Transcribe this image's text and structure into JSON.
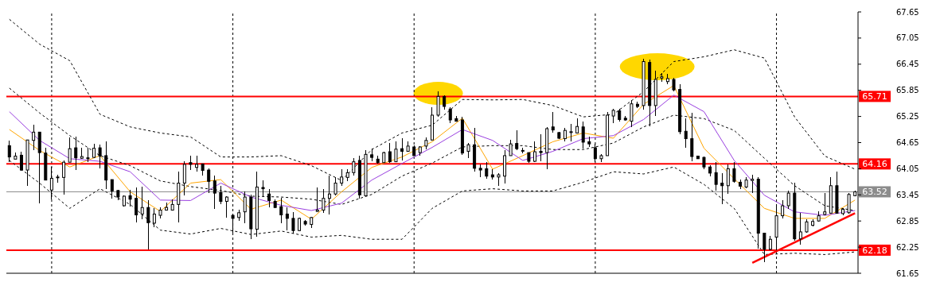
{
  "chart_data": {
    "type": "candlestick",
    "categories": [
      null,
      null,
      null,
      null,
      null,
      null,
      null,
      null,
      null,
      null,
      null,
      null,
      null,
      null,
      null,
      null,
      null,
      null,
      null,
      null,
      null,
      null,
      null,
      null,
      null,
      null,
      null,
      null,
      null,
      null,
      null,
      null,
      null,
      null,
      null,
      null,
      null,
      null,
      null,
      null,
      null,
      null,
      null,
      null,
      null,
      null,
      null,
      null,
      null,
      null,
      null,
      null,
      null,
      null,
      null,
      null,
      null,
      null,
      null,
      null,
      null,
      null,
      null,
      null,
      null,
      null,
      null,
      null,
      null,
      null,
      null,
      null,
      null,
      null,
      null,
      null,
      null,
      null,
      null,
      null,
      null,
      null,
      null,
      null,
      null,
      null,
      null,
      null,
      null,
      null,
      null,
      null,
      null,
      null,
      null,
      null,
      null,
      null,
      null,
      null,
      null,
      null,
      null,
      null,
      null,
      null,
      null,
      null,
      null,
      null,
      null,
      null,
      null,
      null,
      null,
      null,
      null,
      null,
      null,
      null,
      null,
      null,
      null,
      null,
      null,
      null,
      null,
      null,
      null,
      null,
      null,
      null,
      null,
      null,
      null,
      null,
      null,
      null,
      null,
      null,
      null
    ],
    "ohlc": [
      [
        64.58,
        64.7,
        64.21,
        64.32
      ],
      [
        64.27,
        64.42,
        64.27,
        64.34
      ],
      [
        64.36,
        64.44,
        64.01,
        64.02
      ],
      [
        64.02,
        64.72,
        63.66,
        64.71
      ],
      [
        64.7,
        65.06,
        64.47,
        64.89
      ],
      [
        64.89,
        64.9,
        63.25,
        64.42
      ],
      [
        64.41,
        64.53,
        63.78,
        63.79
      ],
      [
        63.56,
        64.09,
        63.35,
        63.83
      ],
      [
        63.86,
        63.92,
        63.72,
        63.86
      ],
      [
        63.85,
        64.24,
        63.45,
        64.2
      ],
      [
        64.2,
        64.77,
        64.2,
        64.51
      ],
      [
        64.53,
        64.78,
        64.02,
        64.3
      ],
      [
        64.29,
        64.53,
        64.27,
        64.33
      ],
      [
        64.3,
        64.53,
        64.21,
        64.29
      ],
      [
        64.31,
        64.63,
        64.29,
        64.52
      ],
      [
        64.53,
        64.61,
        64.06,
        64.34
      ],
      [
        64.35,
        64.68,
        63.58,
        63.79
      ],
      [
        63.8,
        63.8,
        63.37,
        63.54
      ],
      [
        63.55,
        63.56,
        63.32,
        63.4
      ],
      [
        63.2,
        63.43,
        63.19,
        63.42
      ],
      [
        63.43,
        63.56,
        63.19,
        63.35
      ],
      [
        63.37,
        63.62,
        62.81,
        62.99
      ],
      [
        63.01,
        63.63,
        62.89,
        63.16
      ],
      [
        63.16,
        63.32,
        62.2,
        62.81
      ],
      [
        62.8,
        63.14,
        62.71,
        63.01
      ],
      [
        62.98,
        63.17,
        62.91,
        63.1
      ],
      [
        63.1,
        63.28,
        63.09,
        63.16
      ],
      [
        63.1,
        63.35,
        63.09,
        63.23
      ],
      [
        63.23,
        63.99,
        62.81,
        63.72
      ],
      [
        63.72,
        64.22,
        63.43,
        64.15
      ],
      [
        64.19,
        64.35,
        64.02,
        64.15
      ],
      [
        64.08,
        64.35,
        63.99,
        64.15
      ],
      [
        64.16,
        64.17,
        63.89,
        64.01
      ],
      [
        64.02,
        64.06,
        63.49,
        63.76
      ],
      [
        63.77,
        63.89,
        63.12,
        63.49
      ],
      [
        63.5,
        63.66,
        63.23,
        63.3
      ],
      [
        63.3,
        63.41,
        62.93,
        63.4
      ],
      [
        62.98,
        62.99,
        62.58,
        62.91
      ],
      [
        62.93,
        63.1,
        62.86,
        63.04
      ],
      [
        63.06,
        63.52,
        62.8,
        63.4
      ],
      [
        63.4,
        63.46,
        62.43,
        62.67
      ],
      [
        62.66,
        63.98,
        62.48,
        63.63
      ],
      [
        63.62,
        63.78,
        63.42,
        63.59
      ],
      [
        63.47,
        63.59,
        63.16,
        63.32
      ],
      [
        63.3,
        63.34,
        63.15,
        63.16
      ],
      [
        63.18,
        63.39,
        62.8,
        62.99
      ],
      [
        63.01,
        63.17,
        62.63,
        62.91
      ],
      [
        62.91,
        63.06,
        62.57,
        62.63
      ],
      [
        62.63,
        62.93,
        62.62,
        62.91
      ],
      [
        62.84,
        62.87,
        62.75,
        62.78
      ],
      [
        62.77,
        62.95,
        62.69,
        62.93
      ],
      [
        63.07,
        63.62,
        63.06,
        63.1
      ],
      [
        63.1,
        63.58,
        63.03,
        63.37
      ],
      [
        63.37,
        63.89,
        63.0,
        63.47
      ],
      [
        63.47,
        63.86,
        63.43,
        63.72
      ],
      [
        63.72,
        64.04,
        63.66,
        63.86
      ],
      [
        63.85,
        64.04,
        63.76,
        63.96
      ],
      [
        63.96,
        64.29,
        63.9,
        64.21
      ],
      [
        64.24,
        64.35,
        63.37,
        63.45
      ],
      [
        63.43,
        64.48,
        63.42,
        64.38
      ],
      [
        64.37,
        64.52,
        64.22,
        64.31
      ],
      [
        64.27,
        64.34,
        64.16,
        64.19
      ],
      [
        64.19,
        64.44,
        64.18,
        64.42
      ],
      [
        64.44,
        64.64,
        64.18,
        64.21
      ],
      [
        64.21,
        64.68,
        64.2,
        64.5
      ],
      [
        64.51,
        64.75,
        64.24,
        64.45
      ],
      [
        64.45,
        64.67,
        64.44,
        64.57
      ],
      [
        64.55,
        64.58,
        64.34,
        64.35
      ],
      [
        64.42,
        64.56,
        64.35,
        64.55
      ],
      [
        64.57,
        64.77,
        64.49,
        64.7
      ],
      [
        64.71,
        65.47,
        64.7,
        65.28
      ],
      [
        65.28,
        65.83,
        65.24,
        65.71
      ],
      [
        65.71,
        65.73,
        65.4,
        65.48
      ],
      [
        65.42,
        65.47,
        65.09,
        65.17
      ],
      [
        65.2,
        65.27,
        65.13,
        65.14
      ],
      [
        65.17,
        65.24,
        64.37,
        64.41
      ],
      [
        64.45,
        64.65,
        64.29,
        64.6
      ],
      [
        64.6,
        64.98,
        63.99,
        64.06
      ],
      [
        64.06,
        64.15,
        63.86,
        64.02
      ],
      [
        64.05,
        64.2,
        63.82,
        63.88
      ],
      [
        63.91,
        64.04,
        63.81,
        63.86
      ],
      [
        63.86,
        63.94,
        63.66,
        63.91
      ],
      [
        63.88,
        64.47,
        63.71,
        64.35
      ],
      [
        64.35,
        64.71,
        64.34,
        64.62
      ],
      [
        64.63,
        64.93,
        64.48,
        64.51
      ],
      [
        64.47,
        64.53,
        64.41,
        64.47
      ],
      [
        64.42,
        64.43,
        64.19,
        64.22
      ],
      [
        64.22,
        64.67,
        64.21,
        64.44
      ],
      [
        64.45,
        64.84,
        64.22,
        64.42
      ],
      [
        64.42,
        65.01,
        64.04,
        64.97
      ],
      [
        65.01,
        65.36,
        64.87,
        64.94
      ],
      [
        64.88,
        64.9,
        64.73,
        64.75
      ],
      [
        64.74,
        64.98,
        64.67,
        64.93
      ],
      [
        64.88,
        65.07,
        64.67,
        64.9
      ],
      [
        64.87,
        65.2,
        64.86,
        65.02
      ],
      [
        65.01,
        65.14,
        64.52,
        64.66
      ],
      [
        64.67,
        64.78,
        64.55,
        64.62
      ],
      [
        64.53,
        64.62,
        64.21,
        64.28
      ],
      [
        64.28,
        64.39,
        64.21,
        64.35
      ],
      [
        64.35,
        65.36,
        64.34,
        65.28
      ],
      [
        65.26,
        65.43,
        65.1,
        65.39
      ],
      [
        65.38,
        65.43,
        65.13,
        65.18
      ],
      [
        65.21,
        65.27,
        65.15,
        65.17
      ],
      [
        65.14,
        65.63,
        65.01,
        65.54
      ],
      [
        65.53,
        65.59,
        65.44,
        65.48
      ],
      [
        65.5,
        66.57,
        65.4,
        66.51
      ],
      [
        66.49,
        66.55,
        65.02,
        65.5
      ],
      [
        65.5,
        66.3,
        65.27,
        66.1
      ],
      [
        66.13,
        66.25,
        66.05,
        66.16
      ],
      [
        66.05,
        66.23,
        65.99,
        66.12
      ],
      [
        66.1,
        66.14,
        65.83,
        65.86
      ],
      [
        65.87,
        65.99,
        64.84,
        64.9
      ],
      [
        64.91,
        65.21,
        64.53,
        64.74
      ],
      [
        64.74,
        65.33,
        64.22,
        64.33
      ],
      [
        64.34,
        64.35,
        64.27,
        64.28
      ],
      [
        64.31,
        64.33,
        64.04,
        64.09
      ],
      [
        64.09,
        64.13,
        63.88,
        63.95
      ],
      [
        63.96,
        64.21,
        63.54,
        63.69
      ],
      [
        63.72,
        63.95,
        63.23,
        63.66
      ],
      [
        63.66,
        64.15,
        63.47,
        64.05
      ],
      [
        64.05,
        64.21,
        63.72,
        63.76
      ],
      [
        63.74,
        63.8,
        63.58,
        63.65
      ],
      [
        63.63,
        63.86,
        63.61,
        63.79
      ],
      [
        63.78,
        63.92,
        63.49,
        63.81
      ],
      [
        63.81,
        63.85,
        62.22,
        62.57
      ],
      [
        62.57,
        62.58,
        61.91,
        62.2
      ],
      [
        62.2,
        62.51,
        62.17,
        62.43
      ],
      [
        62.48,
        63.23,
        62.17,
        62.97
      ],
      [
        62.97,
        63.32,
        62.91,
        63.2
      ],
      [
        63.2,
        63.55,
        63.13,
        63.49
      ],
      [
        63.49,
        63.72,
        62.4,
        62.44
      ],
      [
        62.44,
        63.03,
        62.31,
        62.6
      ],
      [
        62.6,
        62.89,
        62.58,
        62.83
      ],
      [
        62.75,
        62.89,
        62.73,
        62.84
      ],
      [
        62.85,
        63.07,
        62.84,
        62.97
      ],
      [
        63.0,
        63.5,
        62.99,
        63.06
      ],
      [
        63.03,
        63.85,
        63.02,
        63.66
      ],
      [
        63.66,
        63.98,
        63.01,
        63.03
      ],
      [
        63.02,
        63.15,
        62.99,
        63.12
      ],
      [
        63.04,
        63.49,
        63.02,
        63.46
      ],
      [
        63.43,
        63.55,
        63.42,
        63.52
      ]
    ],
    "series": [
      {
        "type": "line",
        "color": "#000000",
        "line_style": "dashed",
        "values": [
          67.48,
          null,
          null,
          null,
          null,
          66.91,
          null,
          null,
          null,
          null,
          66.53,
          null,
          null,
          null,
          null,
          65.3,
          null,
          null,
          null,
          null,
          65.01,
          null,
          null,
          null,
          null,
          64.87,
          null,
          null,
          null,
          null,
          64.78,
          null,
          null,
          null,
          null,
          64.32,
          null,
          null,
          null,
          null,
          64.32,
          null,
          null,
          null,
          null,
          64.35,
          null,
          null,
          null,
          null,
          64.12,
          null,
          null,
          null,
          null,
          63.78,
          null,
          null,
          null,
          null,
          64.49,
          null,
          null,
          null,
          null,
          64.87,
          null,
          null,
          null,
          null,
          65.05,
          null,
          null,
          null,
          null,
          65.64,
          null,
          null,
          null,
          null,
          65.63,
          null,
          null,
          null,
          null,
          65.64,
          null,
          null,
          null,
          null,
          65.5,
          null,
          null,
          null,
          null,
          65.24,
          null,
          null,
          null,
          null,
          65.3,
          null,
          null,
          null,
          null,
          65.82,
          null,
          null,
          null,
          null,
          66.51,
          null,
          null,
          null,
          null,
          66.62,
          null,
          null,
          null,
          null,
          66.78,
          null,
          null,
          null,
          null,
          66.59,
          null,
          null,
          null,
          null,
          65.24,
          null,
          null,
          null,
          null,
          64.34,
          null,
          null,
          null,
          null,
          64.04
        ]
      },
      {
        "type": "line",
        "color": "#000000",
        "line_style": "dashed",
        "values": [
          65.9,
          null,
          null,
          null,
          null,
          65.33,
          null,
          null,
          null,
          null,
          64.81,
          null,
          null,
          null,
          null,
          64.35,
          null,
          null,
          null,
          null,
          64.12,
          null,
          null,
          null,
          null,
          63.77,
          null,
          null,
          null,
          null,
          63.64,
          null,
          null,
          null,
          null,
          63.55,
          null,
          null,
          null,
          null,
          63.42,
          null,
          null,
          null,
          null,
          63.4,
          null,
          null,
          null,
          null,
          63.35,
          null,
          null,
          null,
          null,
          63.23,
          null,
          null,
          null,
          null,
          63.46,
          null,
          null,
          null,
          null,
          63.88,
          null,
          null,
          null,
          null,
          64.18,
          null,
          null,
          null,
          null,
          64.55,
          null,
          null,
          null,
          null,
          64.58,
          null,
          null,
          null,
          null,
          64.58,
          null,
          null,
          null,
          null,
          64.49,
          null,
          null,
          null,
          null,
          64.49,
          null,
          null,
          null,
          null,
          64.64,
          null,
          null,
          null,
          null,
          65.01,
          null,
          null,
          null,
          null,
          65.28,
          null,
          null,
          null,
          null,
          65.2,
          null,
          null,
          null,
          null,
          64.93,
          null,
          null,
          null,
          null,
          64.29,
          null,
          null,
          null,
          null,
          63.66,
          null,
          null,
          null,
          null,
          63.2,
          null,
          null,
          null,
          null,
          63.09
        ]
      },
      {
        "type": "line",
        "color": "#000000",
        "line_style": "dashed",
        "values": [
          64.24,
          null,
          null,
          null,
          null,
          63.72,
          null,
          null,
          null,
          null,
          63.14,
          null,
          null,
          null,
          null,
          63.59,
          null,
          null,
          null,
          null,
          63.23,
          null,
          null,
          null,
          null,
          62.64,
          null,
          null,
          null,
          null,
          62.55,
          null,
          null,
          null,
          null,
          62.68,
          null,
          null,
          null,
          null,
          62.54,
          null,
          null,
          null,
          null,
          62.62,
          null,
          null,
          null,
          null,
          62.48,
          null,
          null,
          null,
          null,
          62.52,
          null,
          null,
          null,
          null,
          62.43,
          null,
          null,
          null,
          null,
          62.43,
          null,
          null,
          null,
          null,
          63.14,
          null,
          null,
          null,
          null,
          63.54,
          null,
          null,
          null,
          null,
          63.59,
          null,
          null,
          null,
          null,
          63.54,
          null,
          null,
          null,
          null,
          63.54,
          null,
          null,
          null,
          null,
          63.74,
          null,
          null,
          null,
          null,
          63.98,
          null,
          null,
          null,
          null,
          63.93,
          null,
          null,
          null,
          null,
          64.09,
          null,
          null,
          null,
          null,
          63.69,
          null,
          null,
          null,
          null,
          63.14,
          null,
          null,
          null,
          null,
          62.08,
          null,
          null,
          null,
          null,
          62.11,
          null,
          null,
          null,
          null,
          62.08,
          null,
          null,
          null,
          null,
          62.14
        ]
      },
      {
        "type": "line",
        "color": "#ffa500",
        "values": [
          64.95,
          null,
          null,
          null,
          null,
          64.47,
          null,
          null,
          null,
          null,
          64.09,
          null,
          null,
          null,
          null,
          64.35,
          null,
          null,
          null,
          null,
          63.52,
          null,
          null,
          null,
          null,
          63.07,
          null,
          null,
          null,
          null,
          63.72,
          null,
          null,
          null,
          null,
          63.8,
          null,
          null,
          null,
          null,
          63.12,
          null,
          null,
          null,
          null,
          63.33,
          null,
          null,
          null,
          null,
          62.89,
          null,
          null,
          null,
          null,
          63.52,
          null,
          null,
          null,
          null,
          64.08,
          null,
          null,
          null,
          null,
          64.32,
          null,
          null,
          null,
          null,
          64.67,
          null,
          null,
          null,
          null,
          65.21,
          null,
          null,
          null,
          null,
          64.04,
          null,
          null,
          null,
          null,
          64.35,
          null,
          null,
          null,
          null,
          64.67,
          null,
          null,
          null,
          null,
          64.87,
          null,
          null,
          null,
          null,
          64.75,
          null,
          null,
          null,
          null,
          65.53,
          null,
          null,
          null,
          null,
          65.96,
          null,
          null,
          null,
          null,
          64.52,
          null,
          null,
          null,
          null,
          63.82,
          null,
          null,
          null,
          null,
          63.14,
          null,
          null,
          null,
          null,
          62.91,
          null,
          null,
          null,
          null,
          62.91,
          null,
          null,
          null,
          null,
          63.33
        ]
      },
      {
        "type": "line",
        "color": "#9a3fe0",
        "values": [
          65.36,
          null,
          null,
          null,
          null,
          64.7,
          null,
          null,
          null,
          null,
          64.28,
          null,
          null,
          null,
          null,
          64.22,
          null,
          null,
          null,
          null,
          63.98,
          null,
          null,
          null,
          null,
          63.33,
          null,
          null,
          null,
          null,
          63.32,
          null,
          null,
          null,
          null,
          63.72,
          null,
          null,
          null,
          null,
          63.4,
          null,
          null,
          null,
          null,
          63.21,
          null,
          null,
          null,
          null,
          63.09,
          null,
          null,
          null,
          null,
          63.26,
          null,
          null,
          null,
          null,
          63.79,
          null,
          null,
          null,
          null,
          64.17,
          null,
          null,
          null,
          null,
          64.54,
          null,
          null,
          null,
          null,
          64.95,
          null,
          null,
          null,
          null,
          64.7,
          null,
          null,
          null,
          null,
          64.24,
          null,
          null,
          null,
          null,
          64.45,
          null,
          null,
          null,
          null,
          64.74,
          null,
          null,
          null,
          null,
          64.81,
          null,
          null,
          null,
          null,
          65.18,
          null,
          null,
          null,
          null,
          65.74,
          null,
          null,
          null,
          null,
          65.36,
          null,
          null,
          null,
          null,
          64.24,
          null,
          null,
          null,
          null,
          63.44,
          null,
          null,
          null,
          null,
          63.06,
          null,
          null,
          null,
          null,
          62.98,
          null,
          null,
          null,
          null,
          63.09
        ]
      },
      {
        "type": "line",
        "color": "#ff0000",
        "values": [
          null,
          null,
          null,
          null,
          null,
          null,
          null,
          null,
          null,
          null,
          null,
          null,
          null,
          null,
          null,
          null,
          null,
          null,
          null,
          null,
          null,
          null,
          null,
          null,
          null,
          null,
          null,
          null,
          null,
          null,
          null,
          null,
          null,
          null,
          null,
          null,
          null,
          null,
          null,
          null,
          null,
          null,
          null,
          null,
          null,
          null,
          null,
          null,
          null,
          null,
          null,
          null,
          null,
          null,
          null,
          null,
          null,
          null,
          null,
          null,
          null,
          null,
          null,
          null,
          null,
          null,
          null,
          null,
          null,
          null,
          null,
          null,
          null,
          null,
          null,
          null,
          null,
          null,
          null,
          null,
          null,
          null,
          null,
          null,
          null,
          null,
          null,
          null,
          null,
          null,
          null,
          null,
          null,
          null,
          null,
          null,
          null,
          null,
          null,
          null,
          null,
          null,
          null,
          null,
          null,
          null,
          null,
          null,
          null,
          null,
          null,
          null,
          null,
          null,
          null,
          null,
          null,
          null,
          null,
          null,
          null,
          null,
          null,
          61.89,
          null,
          null,
          null,
          null,
          null,
          null,
          null,
          null,
          null,
          null,
          null,
          null,
          null,
          null,
          null,
          null,
          63.03
        ]
      }
    ],
    "ylim": [
      61.65,
      67.65
    ],
    "yticks": [
      61.65,
      62.25,
      62.85,
      63.45,
      64.05,
      64.65,
      65.25,
      65.85,
      66.45,
      67.05,
      67.65
    ],
    "tick_labels": "y",
    "ref_lines": [
      {
        "axis": "y",
        "value": 65.71,
        "label": "65.71",
        "color": "#ff0000"
      },
      {
        "axis": "y",
        "value": 64.16,
        "label": "64.16",
        "color": "#ff0000"
      },
      {
        "axis": "y",
        "value": 63.52,
        "label": "63.52",
        "color": "#8c8c8c"
      },
      {
        "axis": "y",
        "value": 62.18,
        "label": "62.18",
        "color": "#ff0000"
      }
    ]
  }
}
